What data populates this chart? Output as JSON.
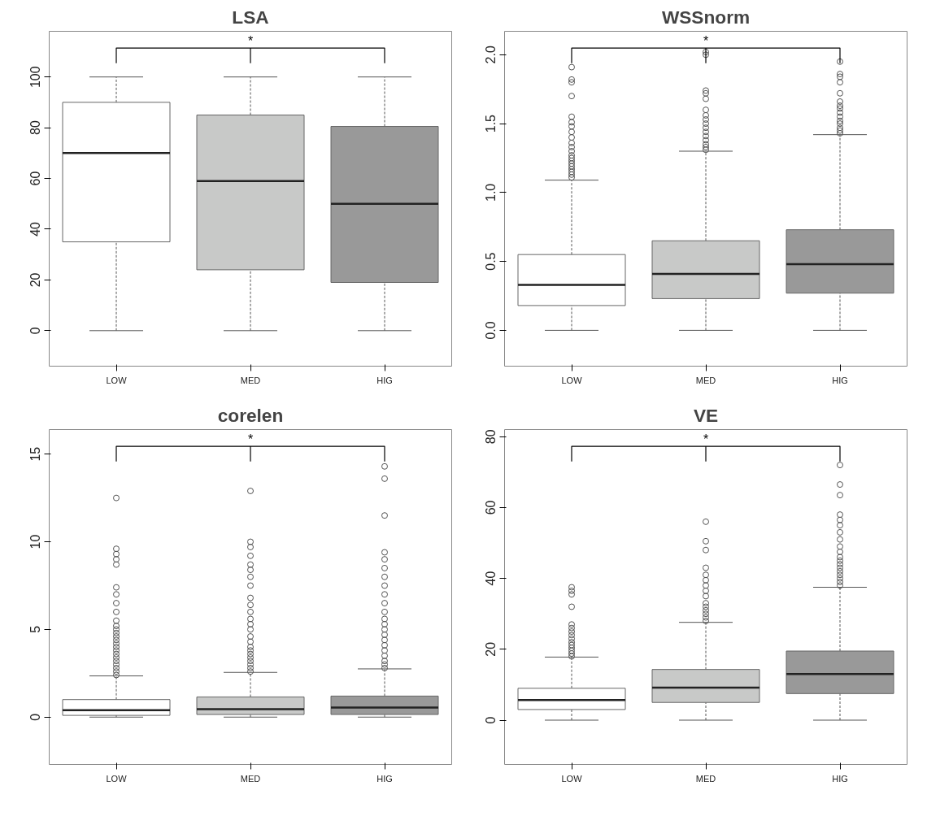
{
  "chart_data": [
    {
      "type": "box",
      "title": "LSA",
      "categories": [
        "LOW",
        "MED",
        "HIG"
      ],
      "colors": [
        "#ffffff",
        "#c8c9c8",
        "#999999"
      ],
      "ylim": [
        -14,
        118
      ],
      "yticks": [
        0,
        20,
        40,
        60,
        80,
        100
      ],
      "grid": false,
      "annotations": [
        "*"
      ],
      "boxes": [
        {
          "low": 0,
          "q1": 35,
          "median": 70,
          "q3": 90,
          "high": 100
        },
        {
          "low": 0,
          "q1": 24,
          "median": 59,
          "q3": 85,
          "high": 100
        },
        {
          "low": 0,
          "q1": 19,
          "median": 50,
          "q3": 80.5,
          "high": 100
        }
      ]
    },
    {
      "type": "box",
      "title": "WSSnorm",
      "categories": [
        "LOW",
        "MED",
        "HIG"
      ],
      "colors": [
        "#ffffff",
        "#c8c9c8",
        "#999999"
      ],
      "ylim": [
        -0.26,
        2.17
      ],
      "yticks": [
        {
          "value": 0,
          "label": "0.0"
        },
        0.5,
        {
          "value": 1,
          "label": "1.0"
        },
        1.5,
        {
          "value": 2,
          "label": "2.0"
        }
      ],
      "grid": false,
      "annotations": [
        "*"
      ],
      "boxes": [
        {
          "low": 0,
          "q1": 0.18,
          "median": 0.33,
          "q3": 0.55,
          "high": 1.09,
          "outliers": [
            1.11,
            1.13,
            1.15,
            1.17,
            1.19,
            1.21,
            1.23,
            1.25,
            1.27,
            1.3,
            1.33,
            1.36,
            1.4,
            1.44,
            1.48,
            1.51,
            1.55,
            1.7,
            1.8,
            1.82,
            1.91
          ]
        },
        {
          "low": 0,
          "q1": 0.23,
          "median": 0.41,
          "q3": 0.65,
          "high": 1.3,
          "outliers": [
            1.31,
            1.33,
            1.35,
            1.38,
            1.41,
            1.44,
            1.47,
            1.5,
            1.53,
            1.56,
            1.6,
            1.68,
            1.72,
            1.74,
            2.0,
            2.02
          ]
        },
        {
          "low": 0,
          "q1": 0.27,
          "median": 0.48,
          "q3": 0.73,
          "high": 1.42,
          "outliers": [
            1.43,
            1.45,
            1.47,
            1.5,
            1.52,
            1.55,
            1.58,
            1.61,
            1.63,
            1.66,
            1.72,
            1.8,
            1.84,
            1.86,
            1.95
          ]
        }
      ]
    },
    {
      "type": "box",
      "title": "corelen",
      "categories": [
        "LOW",
        "MED",
        "HIG"
      ],
      "colors": [
        "#ffffff",
        "#c8c9c8",
        "#999999"
      ],
      "ylim": [
        -2.7,
        16.4
      ],
      "yticks": [
        0,
        5,
        10,
        15
      ],
      "grid": false,
      "annotations": [
        "*"
      ],
      "boxes": [
        {
          "low": 0,
          "q1": 0.1,
          "median": 0.4,
          "q3": 1.0,
          "high": 2.35,
          "outliers": [
            2.4,
            2.6,
            2.8,
            3.0,
            3.2,
            3.4,
            3.6,
            3.8,
            4.0,
            4.2,
            4.4,
            4.6,
            4.8,
            5.0,
            5.2,
            5.5,
            6.0,
            6.5,
            7.0,
            7.4,
            8.7,
            9.0,
            9.3,
            9.6,
            12.5
          ]
        },
        {
          "low": 0,
          "q1": 0.15,
          "median": 0.45,
          "q3": 1.15,
          "high": 2.55,
          "outliers": [
            2.6,
            2.8,
            3.0,
            3.2,
            3.4,
            3.6,
            3.8,
            4.0,
            4.3,
            4.6,
            5.0,
            5.3,
            5.6,
            6.0,
            6.4,
            6.8,
            7.5,
            8.0,
            8.4,
            8.7,
            9.2,
            9.7,
            10.0,
            12.9
          ]
        },
        {
          "low": 0,
          "q1": 0.15,
          "median": 0.55,
          "q3": 1.2,
          "high": 2.75,
          "outliers": [
            2.8,
            3.0,
            3.2,
            3.5,
            3.8,
            4.1,
            4.4,
            4.7,
            5.0,
            5.3,
            5.6,
            6.0,
            6.5,
            7.0,
            7.5,
            8.0,
            8.5,
            9.0,
            9.4,
            11.5,
            13.6,
            14.3
          ]
        }
      ]
    },
    {
      "type": "box",
      "title": "VE",
      "categories": [
        "LOW",
        "MED",
        "HIG"
      ],
      "colors": [
        "#ffffff",
        "#c8c9c8",
        "#999999"
      ],
      "ylim": [
        -12.5,
        82
      ],
      "yticks": [
        0,
        20,
        40,
        60,
        80
      ],
      "grid": false,
      "annotations": [
        "*"
      ],
      "boxes": [
        {
          "low": 0,
          "q1": 3,
          "median": 5.7,
          "q3": 9,
          "high": 17.8,
          "outliers": [
            18,
            18.8,
            19.6,
            20.4,
            21.2,
            22,
            23,
            24,
            25,
            26,
            27,
            32,
            35.5,
            36.5,
            37.5
          ]
        },
        {
          "low": 0,
          "q1": 5,
          "median": 9.2,
          "q3": 14.3,
          "high": 27.6,
          "outliers": [
            28,
            29,
            30,
            31,
            32,
            33,
            35,
            36.5,
            38,
            39.5,
            41,
            43,
            48,
            50.5,
            56
          ]
        },
        {
          "low": 0,
          "q1": 7.5,
          "median": 13,
          "q3": 19.5,
          "high": 37.5,
          "outliers": [
            38,
            39,
            40,
            41,
            42,
            43,
            44,
            45,
            46,
            47.5,
            49,
            51,
            53,
            55,
            56.5,
            58,
            63.5,
            66.5,
            72
          ]
        }
      ]
    }
  ]
}
